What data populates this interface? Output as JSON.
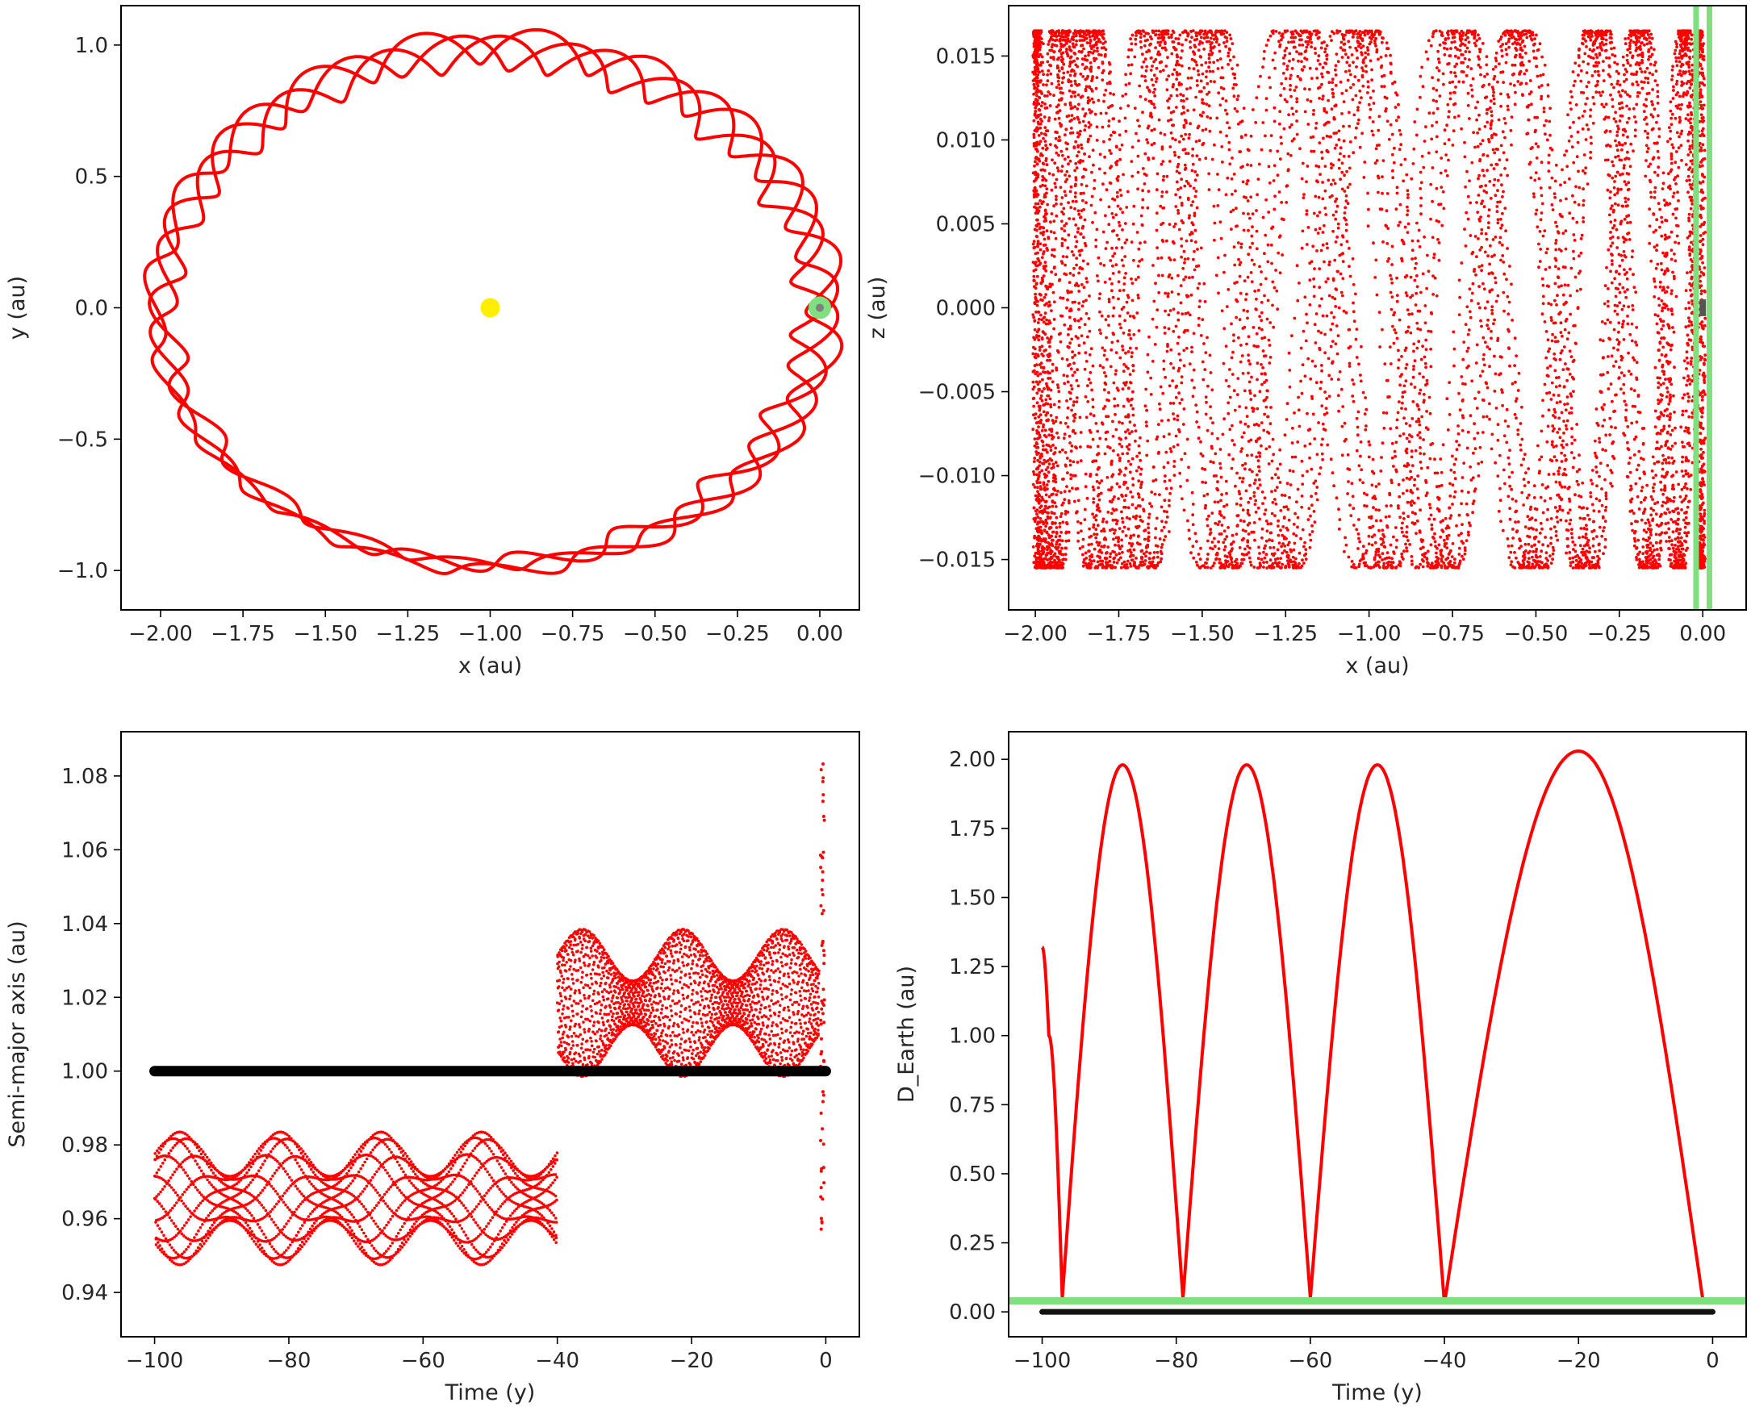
{
  "chart_data": [
    {
      "id": "xy",
      "type": "scatter",
      "title": "",
      "xlabel": "x (au)",
      "ylabel": "y (au)",
      "xlim": [
        -2.12,
        0.12
      ],
      "ylim": [
        -1.15,
        1.15
      ],
      "xticks": [
        -2.0,
        -1.75,
        -1.5,
        -1.25,
        -1.0,
        -0.75,
        -0.5,
        -0.25,
        0.0
      ],
      "xtick_labels": [
        "−2.00",
        "−1.75",
        "−1.50",
        "−1.25",
        "−1.00",
        "−0.75",
        "−0.50",
        "−0.25",
        "0.00"
      ],
      "yticks": [
        -1.0,
        -0.5,
        0.0,
        0.5,
        1.0
      ],
      "ytick_labels": [
        "−1.0",
        "−0.5",
        "0.0",
        "0.5",
        "1.0"
      ],
      "orbit": {
        "center": [
          -1.0,
          0.0
        ],
        "rx": 1.0,
        "ry": 1.0,
        "loops": 14,
        "loop_amp": 0.045
      },
      "sun": {
        "x": -1.0,
        "y": 0.0
      },
      "earth": {
        "x": 0.0,
        "y": 0.0
      },
      "grid": false
    },
    {
      "id": "xz",
      "type": "scatter",
      "title": "",
      "xlabel": "x (au)",
      "ylabel": "z (au)",
      "xlim": [
        -2.08,
        0.13
      ],
      "ylim": [
        -0.018,
        0.018
      ],
      "xticks": [
        -2.0,
        -1.75,
        -1.5,
        -1.25,
        -1.0,
        -0.75,
        -0.5,
        -0.25,
        0.0
      ],
      "xtick_labels": [
        "−2.00",
        "−1.75",
        "−1.50",
        "−1.25",
        "−1.00",
        "−0.75",
        "−0.50",
        "−0.25",
        "0.00"
      ],
      "yticks": [
        -0.015,
        -0.01,
        -0.005,
        0.0,
        0.005,
        0.01,
        0.015
      ],
      "ytick_labels": [
        "−0.015",
        "−0.010",
        "−0.005",
        "0.000",
        "0.005",
        "0.010",
        "0.015"
      ],
      "z_range": [
        -0.0155,
        0.0165
      ],
      "earth_band_x": [
        -0.02,
        0.02
      ],
      "grid": false
    },
    {
      "id": "sma",
      "type": "scatter",
      "title": "",
      "xlabel": "Time (y)",
      "ylabel": "Semi-major axis (au)",
      "xlim": [
        -105,
        5
      ],
      "ylim": [
        0.928,
        1.092
      ],
      "xticks": [
        -100,
        -80,
        -60,
        -40,
        -20,
        0
      ],
      "xtick_labels": [
        "−100",
        "−80",
        "−60",
        "−40",
        "−20",
        "0"
      ],
      "yticks": [
        0.94,
        0.96,
        0.98,
        1.0,
        1.02,
        1.04,
        1.06,
        1.08
      ],
      "ytick_labels": [
        "0.94",
        "0.96",
        "0.98",
        "1.00",
        "1.02",
        "1.04",
        "1.06",
        "1.08"
      ],
      "series": [
        {
          "color": "#ff0000",
          "segments": [
            {
              "t0": -100,
              "t1": -40,
              "mean": 0.9655,
              "amp_min": 0.006,
              "amp_max": 0.018
            },
            {
              "t0": -40,
              "t1": -1,
              "mean": 1.0185,
              "amp_min": 0.006,
              "amp_max": 0.02
            }
          ]
        },
        {
          "color": "#000000",
          "value": 1.0,
          "t0": -100,
          "t1": 0
        }
      ],
      "spike": {
        "t": -0.5,
        "min": 0.956,
        "max": 1.086
      },
      "grid": false
    },
    {
      "id": "dearth",
      "type": "line",
      "title": "",
      "xlabel": "Time (y)",
      "ylabel": "D_Earth (au)",
      "xlim": [
        -105,
        5
      ],
      "ylim": [
        -0.09,
        2.1
      ],
      "xticks": [
        -100,
        -80,
        -60,
        -40,
        -20,
        0
      ],
      "xtick_labels": [
        "−100",
        "−80",
        "−60",
        "−40",
        "−20",
        "0"
      ],
      "yticks": [
        0.0,
        0.25,
        0.5,
        0.75,
        1.0,
        1.25,
        1.5,
        1.75,
        2.0
      ],
      "ytick_labels": [
        "0.00",
        "0.25",
        "0.50",
        "0.75",
        "1.00",
        "1.25",
        "1.50",
        "1.75",
        "2.00"
      ],
      "series": [
        {
          "color": "#ff0000",
          "x": [
            -100,
            -99,
            -97,
            -88,
            -79,
            -69.5,
            -60,
            -50,
            -40,
            -20,
            -1.5
          ],
          "y": [
            1.32,
            1.0,
            0.05,
            1.98,
            0.05,
            1.98,
            0.05,
            1.98,
            0.03,
            2.03,
            0.05
          ]
        },
        {
          "color": "#000000",
          "value": 0.0,
          "t0": -100,
          "t1": 0
        }
      ],
      "threshold": {
        "value": 0.04,
        "color": "#7fe07f"
      },
      "grid": false
    }
  ]
}
